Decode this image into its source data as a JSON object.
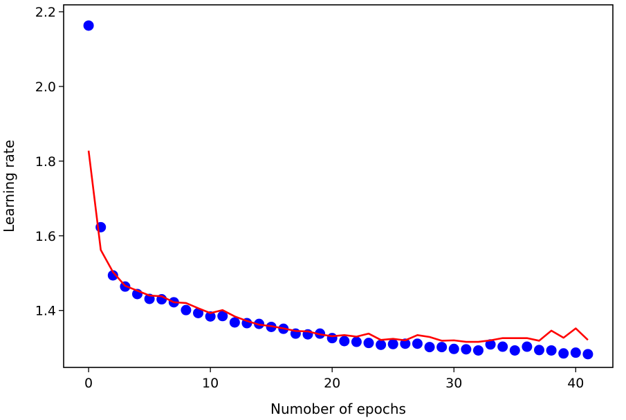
{
  "chart_data": {
    "type": "scatter",
    "title": "",
    "xlabel": "Numober of epochs",
    "ylabel": "Learning rate",
    "xlim": [
      -2.05,
      43.05
    ],
    "ylim": [
      1.2475,
      2.2185
    ],
    "xticks": [
      0,
      10,
      20,
      30,
      40
    ],
    "yticks": [
      1.4,
      1.6,
      1.8,
      2.0,
      2.2
    ],
    "xtick_labels": [
      "0",
      "10",
      "20",
      "30",
      "40"
    ],
    "ytick_labels": [
      "1.4",
      "1.6",
      "1.8",
      "2.0",
      "2.2"
    ],
    "grid": false,
    "series": [
      {
        "name": "points",
        "kind": "scatter",
        "color": "#0000ff",
        "x": [
          0,
          1,
          2,
          3,
          4,
          5,
          6,
          7,
          8,
          9,
          10,
          11,
          12,
          13,
          14,
          15,
          16,
          17,
          18,
          19,
          20,
          21,
          22,
          23,
          24,
          25,
          26,
          27,
          28,
          29,
          30,
          31,
          32,
          33,
          34,
          35,
          36,
          37,
          38,
          39,
          40,
          41
        ],
        "values": [
          2.163,
          1.623,
          1.494,
          1.464,
          1.444,
          1.431,
          1.43,
          1.422,
          1.401,
          1.393,
          1.384,
          1.385,
          1.368,
          1.366,
          1.364,
          1.356,
          1.351,
          1.338,
          1.336,
          1.338,
          1.326,
          1.318,
          1.316,
          1.313,
          1.308,
          1.31,
          1.311,
          1.311,
          1.302,
          1.302,
          1.297,
          1.296,
          1.293,
          1.309,
          1.303,
          1.293,
          1.303,
          1.294,
          1.293,
          1.285,
          1.287,
          1.283
        ]
      },
      {
        "name": "trend",
        "kind": "line",
        "color": "#ff0000",
        "x": [
          0,
          1,
          2,
          3,
          4,
          5,
          6,
          7,
          8,
          9,
          10,
          11,
          12,
          13,
          14,
          15,
          16,
          17,
          18,
          19,
          20,
          21,
          22,
          23,
          24,
          25,
          26,
          27,
          28,
          29,
          30,
          31,
          32,
          33,
          34,
          35,
          36,
          37,
          38,
          39,
          40,
          41
        ],
        "values": [
          1.828,
          1.562,
          1.503,
          1.466,
          1.453,
          1.44,
          1.438,
          1.422,
          1.42,
          1.406,
          1.393,
          1.401,
          1.384,
          1.372,
          1.362,
          1.358,
          1.352,
          1.345,
          1.344,
          1.336,
          1.331,
          1.334,
          1.33,
          1.338,
          1.321,
          1.324,
          1.32,
          1.334,
          1.329,
          1.319,
          1.32,
          1.316,
          1.316,
          1.32,
          1.326,
          1.326,
          1.326,
          1.319,
          1.346,
          1.327,
          1.352,
          1.321
        ]
      }
    ]
  }
}
